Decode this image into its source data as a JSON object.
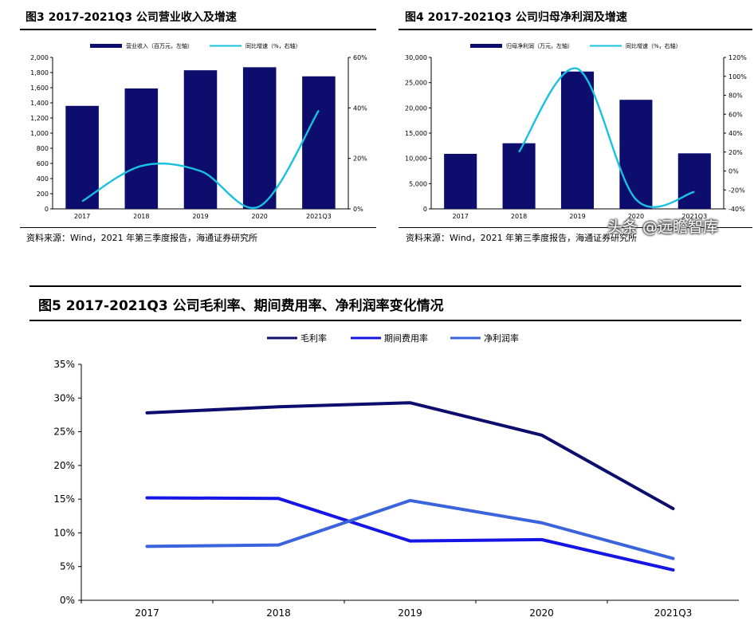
{
  "figures": {
    "fig3": {
      "title": "图3  2017-2021Q3 公司营业收入及增速",
      "source": "资料来源：Wind，2021 年第三季度报告，海通证券研究所"
    },
    "fig4": {
      "title": "图4  2017-2021Q3 公司归母净利润及增速",
      "source": "资料来源：Wind，2021 年第三季度报告，海通证券研究所"
    },
    "fig5": {
      "title": "图5  2017-2021Q3 公司毛利率、期间费用率、净利润率变化情况"
    }
  },
  "watermark": "头条 @远瞻智库",
  "chart_data": [
    {
      "id": "fig3",
      "type": "bar",
      "categories": [
        "2017",
        "2018",
        "2019",
        "2020",
        "2021Q3"
      ],
      "series": [
        {
          "name": "营业收入（百万元，左轴）",
          "type": "bar",
          "axis": "left",
          "color": "#0d0d6e",
          "values": [
            1360,
            1590,
            1830,
            1870,
            1750
          ]
        },
        {
          "name": "同比增速（%，右轴）",
          "type": "line",
          "axis": "right",
          "color": "#19c1e0",
          "values": [
            3,
            17,
            15,
            1,
            39
          ]
        }
      ],
      "y_left": {
        "min": 0,
        "max": 2000,
        "step": 200
      },
      "y_right": {
        "min": 0,
        "max": 60,
        "step": 20
      },
      "y_left_ticks": [
        "0",
        "200",
        "400",
        "600",
        "800",
        "1,000",
        "1,200",
        "1,400",
        "1,600",
        "1,800",
        "2,000"
      ],
      "y_right_ticks": [
        "0%",
        "20%",
        "40%",
        "60%"
      ],
      "legend": "top"
    },
    {
      "id": "fig4",
      "type": "bar",
      "categories": [
        "2017",
        "2018",
        "2019",
        "2020",
        "2021Q3"
      ],
      "series": [
        {
          "name": "归母净利润（万元，左轴）",
          "type": "bar",
          "axis": "left",
          "color": "#0d0d6e",
          "values": [
            10900,
            13000,
            27200,
            21600,
            11000
          ]
        },
        {
          "name": "同比增速（%，右轴）",
          "type": "line",
          "axis": "right",
          "color": "#19c1e0",
          "values": [
            null,
            20,
            108,
            -30,
            -22
          ]
        }
      ],
      "y_left": {
        "min": 0,
        "max": 30000,
        "step": 5000
      },
      "y_right": {
        "min": -40,
        "max": 120,
        "step": 20
      },
      "y_left_ticks": [
        "0",
        "5,000",
        "10,000",
        "15,000",
        "20,000",
        "25,000",
        "30,000"
      ],
      "y_right_ticks": [
        "-40%",
        "-20%",
        "0%",
        "20%",
        "40%",
        "60%",
        "80%",
        "100%",
        "120%"
      ],
      "legend": "top"
    },
    {
      "id": "fig5",
      "type": "line",
      "categories": [
        "2017",
        "2018",
        "2019",
        "2020",
        "2021Q3"
      ],
      "series": [
        {
          "name": "毛利率",
          "color": "#0d0d6e",
          "values": [
            27.8,
            28.7,
            29.3,
            24.5,
            13.6
          ]
        },
        {
          "name": "期间费用率",
          "color": "#1515e6",
          "values": [
            15.2,
            15.1,
            8.8,
            9.0,
            4.5
          ]
        },
        {
          "name": "净利润率",
          "color": "#3a64dc",
          "values": [
            8.0,
            8.2,
            14.8,
            11.5,
            6.2
          ]
        }
      ],
      "y": {
        "min": 0,
        "max": 35,
        "step": 5
      },
      "y_ticks": [
        "0%",
        "5%",
        "10%",
        "15%",
        "20%",
        "25%",
        "30%",
        "35%"
      ],
      "legend": "top"
    }
  ]
}
